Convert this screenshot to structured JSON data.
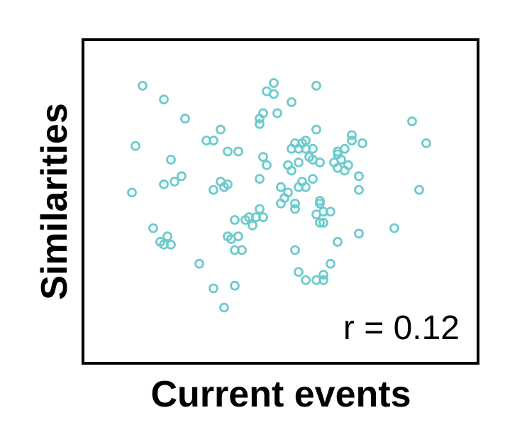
{
  "chart_data": {
    "type": "scatter",
    "title": "",
    "xlabel": "Current events",
    "ylabel": "Similarities",
    "annotation": "r = 0.12",
    "xlim": [
      0,
      100
    ],
    "ylim": [
      0,
      100
    ],
    "ticks_visible": false,
    "grid": false,
    "legend": "none",
    "marker": "open-circle",
    "color": "#6ccbcd",
    "series": [
      {
        "points": [
          [
            9,
            70
          ],
          [
            8,
            53
          ],
          [
            17,
            87
          ],
          [
            23,
            80
          ],
          [
            19,
            65
          ],
          [
            17,
            56
          ],
          [
            20,
            57
          ],
          [
            22,
            59
          ],
          [
            14,
            40
          ],
          [
            18,
            37
          ],
          [
            17,
            34
          ],
          [
            16,
            35
          ],
          [
            19,
            34
          ],
          [
            27,
            27
          ],
          [
            31,
            18
          ],
          [
            34,
            11
          ],
          [
            37,
            19
          ],
          [
            29,
            72
          ],
          [
            31,
            72
          ],
          [
            33,
            76
          ],
          [
            35,
            68
          ],
          [
            38,
            68
          ],
          [
            34,
            55
          ],
          [
            31,
            54
          ],
          [
            33,
            57
          ],
          [
            35,
            56
          ],
          [
            37,
            43
          ],
          [
            35,
            37
          ],
          [
            36,
            36
          ],
          [
            38,
            37
          ],
          [
            37,
            32
          ],
          [
            39,
            32
          ],
          [
            40,
            43
          ],
          [
            41,
            44
          ],
          [
            42,
            41
          ],
          [
            43,
            44
          ],
          [
            44,
            47
          ],
          [
            45,
            44
          ],
          [
            44,
            58
          ],
          [
            46,
            63
          ],
          [
            45,
            66
          ],
          [
            44,
            80
          ],
          [
            45,
            82
          ],
          [
            44,
            78
          ],
          [
            48,
            93
          ],
          [
            48,
            89
          ],
          [
            49,
            82
          ],
          [
            53,
            86
          ],
          [
            50,
            55
          ],
          [
            51,
            51
          ],
          [
            50,
            49
          ],
          [
            52,
            53
          ],
          [
            52,
            63
          ],
          [
            53,
            69
          ],
          [
            54,
            71
          ],
          [
            56,
            71
          ],
          [
            55,
            69
          ],
          [
            54,
            49
          ],
          [
            54,
            47
          ],
          [
            54,
            32
          ],
          [
            53,
            61
          ],
          [
            55,
            55
          ],
          [
            56,
            57
          ],
          [
            57,
            55
          ],
          [
            57,
            72
          ],
          [
            55,
            64
          ],
          [
            57,
            69
          ],
          [
            58,
            66
          ],
          [
            59,
            69
          ],
          [
            59,
            65
          ],
          [
            60,
            76
          ],
          [
            59,
            58
          ],
          [
            61,
            64
          ],
          [
            61,
            50
          ],
          [
            61,
            49
          ],
          [
            60,
            45
          ],
          [
            62,
            46
          ],
          [
            61,
            42
          ],
          [
            62,
            42
          ],
          [
            64,
            46
          ],
          [
            65,
            64
          ],
          [
            66,
            62
          ],
          [
            66,
            68
          ],
          [
            66,
            67
          ],
          [
            67,
            65
          ],
          [
            68,
            69
          ],
          [
            68,
            61
          ],
          [
            69,
            63
          ],
          [
            70,
            74
          ],
          [
            70,
            72
          ],
          [
            66,
            35
          ],
          [
            64,
            27
          ],
          [
            62,
            23
          ],
          [
            62,
            21
          ],
          [
            60,
            21
          ],
          [
            55,
            24
          ],
          [
            57,
            21
          ],
          [
            60,
            92
          ],
          [
            72,
            38
          ],
          [
            72,
            59
          ],
          [
            72,
            54
          ],
          [
            73,
            71
          ],
          [
            82,
            40
          ],
          [
            87,
            79
          ],
          [
            89,
            54
          ],
          [
            91,
            71
          ],
          [
            11,
            92
          ],
          [
            46,
            90
          ]
        ]
      }
    ]
  }
}
